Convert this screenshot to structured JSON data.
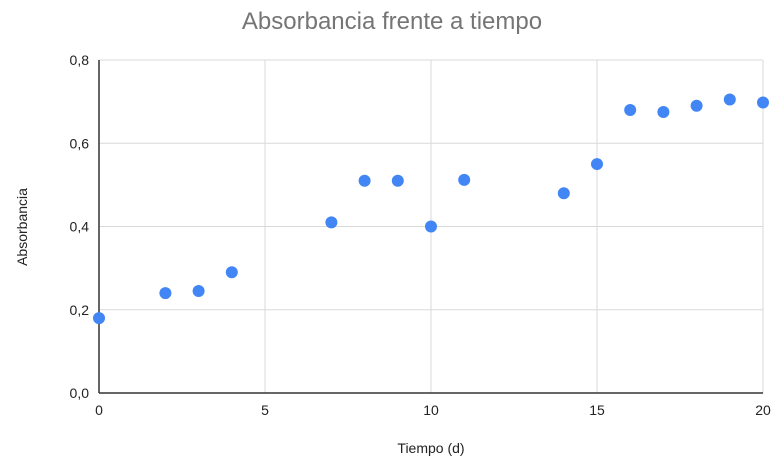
{
  "chart_data": {
    "type": "scatter",
    "title": "Absorbancia frente a tiempo",
    "xlabel": "Tiempo (d)",
    "ylabel": "Absorbancia",
    "xlim": [
      0,
      20
    ],
    "ylim": [
      0,
      0.8
    ],
    "x_ticks": [
      "0",
      "5",
      "10",
      "15",
      "20"
    ],
    "y_ticks": [
      "0,0",
      "0,2",
      "0,4",
      "0,6",
      "0,8"
    ],
    "grid": true,
    "legend": "none",
    "series": [
      {
        "color": "#4285f4",
        "x": [
          0,
          2,
          3,
          4,
          7,
          8,
          9,
          10,
          11,
          14,
          15,
          16,
          17,
          18,
          19,
          20
        ],
        "y": [
          0.18,
          0.24,
          0.245,
          0.29,
          0.41,
          0.51,
          0.51,
          0.4,
          0.512,
          0.48,
          0.55,
          0.68,
          0.675,
          0.69,
          0.705,
          0.698
        ]
      }
    ]
  }
}
